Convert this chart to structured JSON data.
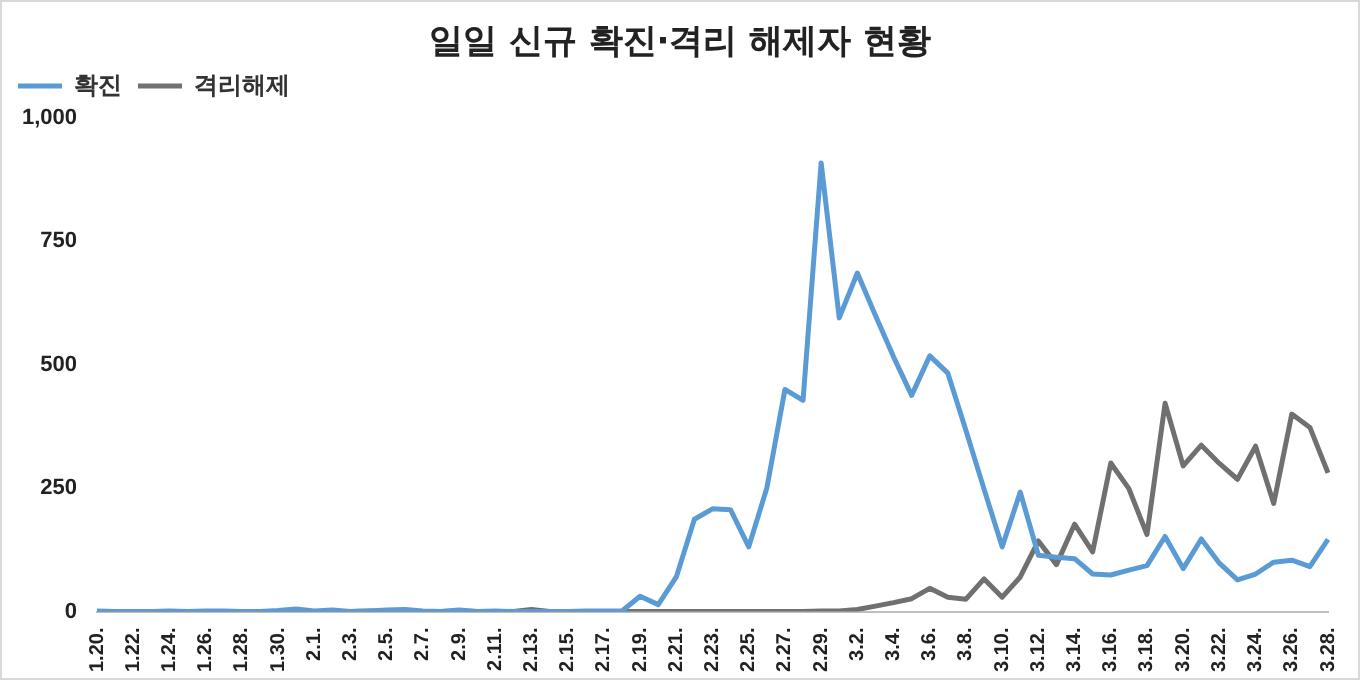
{
  "chart_data": {
    "type": "line",
    "title": "일일 신규 확진·격리 해제자 현황",
    "categories": [
      "1.20.",
      null,
      "1.22.",
      null,
      "1.24.",
      null,
      "1.26.",
      null,
      "1.28.",
      null,
      "1.30.",
      null,
      "2.1.",
      null,
      "2.3.",
      null,
      "2.5.",
      null,
      "2.7.",
      null,
      "2.9.",
      null,
      "2.11.",
      null,
      "2.13.",
      null,
      "2.15.",
      null,
      "2.17.",
      null,
      "2.19.",
      null,
      "2.21.",
      null,
      "2.23.",
      null,
      "2.25.",
      null,
      "2.27.",
      null,
      "2.29.",
      null,
      "3.2.",
      null,
      "3.4.",
      null,
      "3.6.",
      null,
      "3.8.",
      null,
      "3.10.",
      null,
      "3.12.",
      null,
      "3.14.",
      null,
      "3.16.",
      null,
      "3.18.",
      null,
      "3.20.",
      null,
      "3.22.",
      null,
      "3.24.",
      null,
      "3.26.",
      null,
      "3.28."
    ],
    "series": [
      {
        "name": "확진",
        "color": "#5b9bd5",
        "values": [
          1,
          0,
          0,
          0,
          1,
          0,
          1,
          1,
          0,
          0,
          2,
          5,
          1,
          3,
          0,
          1,
          3,
          4,
          1,
          0,
          3,
          0,
          1,
          0,
          0,
          0,
          0,
          1,
          1,
          1,
          31,
          14,
          70,
          187,
          208,
          206,
          131,
          250,
          450,
          428,
          909,
          595,
          686,
          600,
          516,
          438,
          518,
          483,
          367,
          248,
          131,
          242,
          114,
          110,
          107,
          76,
          74,
          84,
          93,
          152,
          87,
          147,
          98,
          64,
          76,
          100,
          104,
          91,
          146
        ]
      },
      {
        "name": "격리해제",
        "color": "#707070",
        "values": [
          0,
          0,
          0,
          0,
          0,
          0,
          0,
          0,
          0,
          0,
          0,
          0,
          0,
          0,
          0,
          1,
          0,
          0,
          0,
          0,
          1,
          0,
          0,
          0,
          4,
          0,
          0,
          0,
          0,
          0,
          0,
          0,
          0,
          0,
          0,
          0,
          0,
          0,
          0,
          0,
          1,
          1,
          4,
          11,
          18,
          26,
          47,
          29,
          25,
          66,
          29,
          70,
          143,
          95,
          177,
          121,
          301,
          249,
          156,
          422,
          295,
          337,
          300,
          268,
          335,
          219,
          400,
          373,
          281
        ]
      }
    ],
    "ylim": [
      0,
      1000
    ],
    "yticks": [
      0,
      {
        "value": 250,
        "label": "250"
      },
      {
        "value": 500,
        "label": "500"
      },
      {
        "value": 750,
        "label": "750"
      },
      {
        "value": 1000,
        "label": "1,000"
      }
    ],
    "grid": false,
    "legend": "top left",
    "marker": "none",
    "line_style": "solid"
  }
}
